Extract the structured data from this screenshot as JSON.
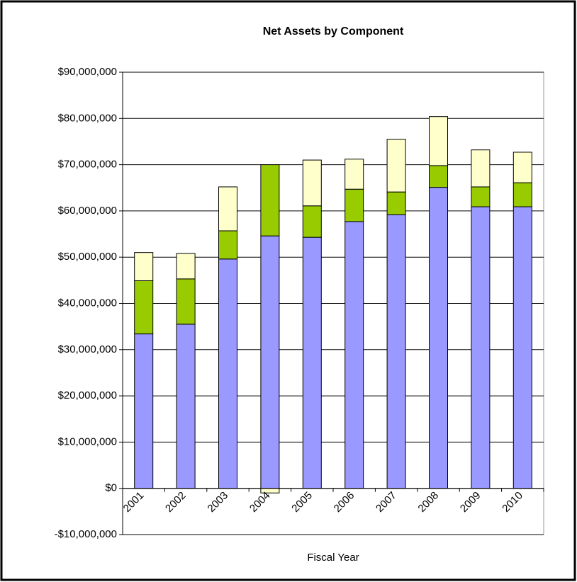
{
  "chart_data": {
    "type": "stacked_bar",
    "title": "Net Assets by Component",
    "x_label": "Fiscal Year",
    "categories": [
      "2001",
      "2002",
      "2003",
      "2004",
      "2005",
      "2006",
      "2007",
      "2008",
      "2009",
      "2010"
    ],
    "series": [
      {
        "color": "#9999ff",
        "values": [
          33400000,
          35500000,
          49600000,
          54600000,
          54300000,
          57700000,
          59200000,
          65100000,
          60900000,
          60900000
        ]
      },
      {
        "color": "#99cc00",
        "values": [
          11500000,
          9800000,
          6100000,
          15400000,
          6800000,
          7000000,
          4900000,
          4700000,
          4300000,
          5200000
        ]
      },
      {
        "color": "#ffffcc",
        "values": [
          6100000,
          5500000,
          9500000,
          -1000000,
          9900000,
          6500000,
          11400000,
          10600000,
          8000000,
          6600000
        ]
      }
    ],
    "ylim": [
      -10000000,
      90000000
    ],
    "yticks": [
      {
        "value": -10000000,
        "label": "-$10,000,000"
      },
      {
        "value": 0,
        "label": "$0"
      },
      {
        "value": 10000000,
        "label": "$10,000,000"
      },
      {
        "value": 20000000,
        "label": "$20,000,000"
      },
      {
        "value": 30000000,
        "label": "$30,000,000"
      },
      {
        "value": 40000000,
        "label": "$40,000,000"
      },
      {
        "value": 50000000,
        "label": "$50,000,000"
      },
      {
        "value": 60000000,
        "label": "$60,000,000"
      },
      {
        "value": 70000000,
        "label": "$70,000,000"
      },
      {
        "value": 80000000,
        "label": "$80,000,000"
      },
      {
        "value": 90000000,
        "label": "$90,000,000"
      }
    ],
    "grid": true
  }
}
